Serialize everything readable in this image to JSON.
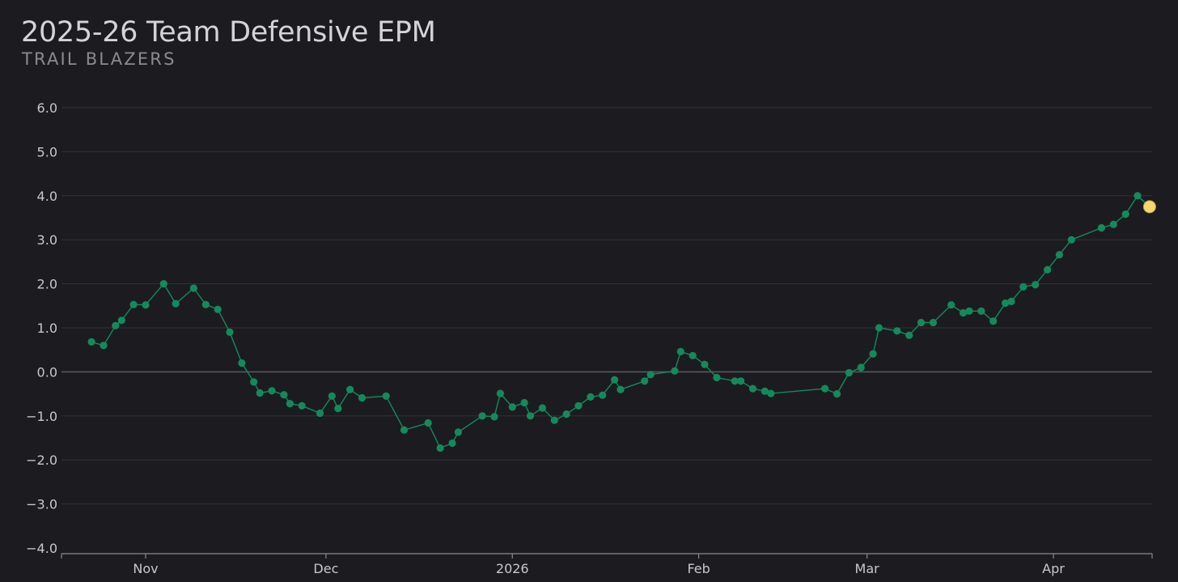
{
  "chart_data": {
    "type": "line",
    "title": "2025-26 Team Defensive EPM",
    "subtitle": "TRAIL BLAZERS",
    "xlabel": "",
    "ylabel": "",
    "ylim": [
      -4.0,
      6.0
    ],
    "xlim": [
      "2025-10-22",
      "2026-04-15"
    ],
    "y_ticks": [
      6.0,
      5.0,
      4.0,
      3.0,
      2.0,
      1.0,
      0.0,
      -1.0,
      -2.0,
      -3.0,
      -4.0
    ],
    "y_tick_labels": [
      "6.0",
      "5.0",
      "4.0",
      "3.0",
      "2.0",
      "1.0",
      "0.0",
      "−1.0",
      "−2.0",
      "−3.0",
      "−4.0"
    ],
    "x_ticks": [
      {
        "date": "2025-11-01",
        "label": "Nov"
      },
      {
        "date": "2025-12-01",
        "label": "Dec"
      },
      {
        "date": "2026-01-01",
        "label": "2026"
      },
      {
        "date": "2026-02-01",
        "label": "Feb"
      },
      {
        "date": "2026-03-01",
        "label": "Mar"
      },
      {
        "date": "2026-04-01",
        "label": "Apr"
      }
    ],
    "grid": true,
    "line_color": "#148a5c",
    "highlight_color": "#f5d76e",
    "series": [
      {
        "points": [
          [
            "2025-10-23",
            0.68
          ],
          [
            "2025-10-25",
            0.6
          ],
          [
            "2025-10-27",
            1.05
          ],
          [
            "2025-10-28",
            1.17
          ],
          [
            "2025-10-30",
            1.53
          ],
          [
            "2025-11-01",
            1.52
          ],
          [
            "2025-11-04",
            2.0
          ],
          [
            "2025-11-06",
            1.55
          ],
          [
            "2025-11-09",
            1.9
          ],
          [
            "2025-11-11",
            1.53
          ],
          [
            "2025-11-13",
            1.42
          ],
          [
            "2025-11-15",
            0.9
          ],
          [
            "2025-11-17",
            0.2
          ],
          [
            "2025-11-19",
            -0.23
          ],
          [
            "2025-11-20",
            -0.48
          ],
          [
            "2025-11-22",
            -0.43
          ],
          [
            "2025-11-24",
            -0.52
          ],
          [
            "2025-11-25",
            -0.72
          ],
          [
            "2025-11-27",
            -0.77
          ],
          [
            "2025-11-30",
            -0.94
          ],
          [
            "2025-12-02",
            -0.55
          ],
          [
            "2025-12-03",
            -0.83
          ],
          [
            "2025-12-05",
            -0.4
          ],
          [
            "2025-12-07",
            -0.59
          ],
          [
            "2025-12-11",
            -0.55
          ],
          [
            "2025-12-14",
            -1.32
          ],
          [
            "2025-12-18",
            -1.16
          ],
          [
            "2025-12-20",
            -1.73
          ],
          [
            "2025-12-22",
            -1.62
          ],
          [
            "2025-12-23",
            -1.37
          ],
          [
            "2025-12-27",
            -1.0
          ],
          [
            "2025-12-29",
            -1.02
          ],
          [
            "2025-12-30",
            -0.49
          ],
          [
            "2026-01-01",
            -0.8
          ],
          [
            "2026-01-03",
            -0.7
          ],
          [
            "2026-01-04",
            -1.0
          ],
          [
            "2026-01-06",
            -0.82
          ],
          [
            "2026-01-08",
            -1.1
          ],
          [
            "2026-01-10",
            -0.96
          ],
          [
            "2026-01-12",
            -0.77
          ],
          [
            "2026-01-14",
            -0.57
          ],
          [
            "2026-01-16",
            -0.53
          ],
          [
            "2026-01-18",
            -0.18
          ],
          [
            "2026-01-19",
            -0.4
          ],
          [
            "2026-01-23",
            -0.21
          ],
          [
            "2026-01-24",
            -0.06
          ],
          [
            "2026-01-28",
            0.02
          ],
          [
            "2026-01-29",
            0.46
          ],
          [
            "2026-01-31",
            0.37
          ],
          [
            "2026-02-02",
            0.17
          ],
          [
            "2026-02-04",
            -0.13
          ],
          [
            "2026-02-07",
            -0.21
          ],
          [
            "2026-02-08",
            -0.21
          ],
          [
            "2026-02-10",
            -0.38
          ],
          [
            "2026-02-12",
            -0.44
          ],
          [
            "2026-02-13",
            -0.49
          ],
          [
            "2026-02-22",
            -0.38
          ],
          [
            "2026-02-24",
            -0.5
          ],
          [
            "2026-02-26",
            -0.02
          ],
          [
            "2026-02-28",
            0.1
          ],
          [
            "2026-03-02",
            0.41
          ],
          [
            "2026-03-03",
            1.0
          ],
          [
            "2026-03-06",
            0.93
          ],
          [
            "2026-03-08",
            0.83
          ],
          [
            "2026-03-10",
            1.12
          ],
          [
            "2026-03-12",
            1.12
          ],
          [
            "2026-03-15",
            1.52
          ],
          [
            "2026-03-17",
            1.34
          ],
          [
            "2026-03-18",
            1.38
          ],
          [
            "2026-03-20",
            1.38
          ],
          [
            "2026-03-22",
            1.15
          ],
          [
            "2026-03-24",
            1.56
          ],
          [
            "2026-03-25",
            1.6
          ],
          [
            "2026-03-27",
            1.93
          ],
          [
            "2026-03-29",
            1.98
          ],
          [
            "2026-03-31",
            2.32
          ],
          [
            "2026-04-02",
            2.66
          ],
          [
            "2026-04-04",
            3.0
          ],
          [
            "2026-04-09",
            3.27
          ],
          [
            "2026-04-11",
            3.35
          ],
          [
            "2026-04-13",
            3.58
          ],
          [
            "2026-04-15",
            4.0
          ],
          [
            "2026-04-17",
            3.75
          ]
        ]
      }
    ]
  }
}
